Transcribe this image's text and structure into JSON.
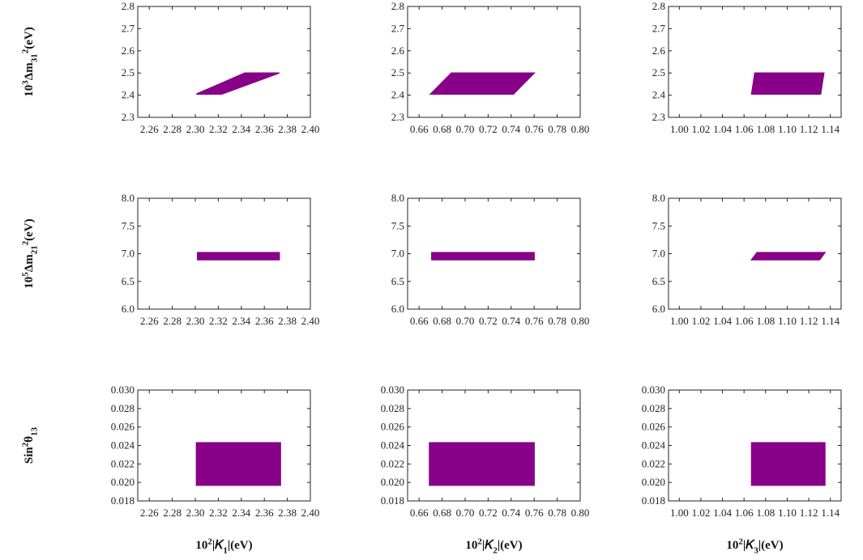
{
  "colors": {
    "region": "#880088",
    "frame": "#222222",
    "background": "#ffffff"
  },
  "x_axes": [
    {
      "label": "10<sup>2</sup>|𝐾<sub>1</sub>|(eV)",
      "ticks": [
        "2.26",
        "2.28",
        "2.30",
        "2.32",
        "2.34",
        "2.36",
        "2.38",
        "2.40"
      ],
      "range": [
        2.25,
        2.4
      ]
    },
    {
      "label": "10<sup>2</sup>|𝐾<sub>2</sub>|(eV)",
      "ticks": [
        "0.66",
        "0.68",
        "0.70",
        "0.72",
        "0.74",
        "0.76",
        "0.78",
        "0.80"
      ],
      "range": [
        0.65,
        0.8
      ]
    },
    {
      "label": "10<sup>2</sup>|𝐾<sub>3</sub>|(eV)",
      "ticks": [
        "1.00",
        "1.02",
        "1.04",
        "1.06",
        "1.08",
        "1.10",
        "1.12",
        "1.14"
      ],
      "range": [
        0.99,
        1.15
      ]
    }
  ],
  "chart_data": [
    {
      "type": "scatter",
      "row": 0,
      "col": 0,
      "ylabel": "10<sup>3</sup>Δm<sub>31</sub><sup>2</sup>(eV)",
      "yticks": [
        "2.3",
        "2.4",
        "2.5",
        "2.6",
        "2.7",
        "2.8"
      ],
      "ylim": [
        2.3,
        2.8
      ],
      "region": [
        [
          2.301,
          2.405
        ],
        [
          2.323,
          2.405
        ],
        [
          2.373,
          2.5
        ],
        [
          2.343,
          2.5
        ]
      ]
    },
    {
      "type": "scatter",
      "row": 0,
      "col": 1,
      "ylabel": "",
      "yticks": [
        "2.3",
        "2.4",
        "2.5",
        "2.6",
        "2.7",
        "2.8"
      ],
      "ylim": [
        2.3,
        2.8
      ],
      "region": [
        [
          0.67,
          2.405
        ],
        [
          0.742,
          2.405
        ],
        [
          0.76,
          2.5
        ],
        [
          0.688,
          2.5
        ]
      ]
    },
    {
      "type": "scatter",
      "row": 0,
      "col": 2,
      "ylabel": "",
      "yticks": [
        "2.3",
        "2.4",
        "2.5",
        "2.6",
        "2.7",
        "2.8"
      ],
      "ylim": [
        2.3,
        2.8
      ],
      "region": [
        [
          1.067,
          2.405
        ],
        [
          1.131,
          2.405
        ],
        [
          1.134,
          2.5
        ],
        [
          1.07,
          2.5
        ]
      ]
    },
    {
      "type": "scatter",
      "row": 1,
      "col": 0,
      "ylabel": "10<sup>5</sup>Δm<sub>21</sub><sup>2</sup>(eV)",
      "yticks": [
        "6.0",
        "6.5",
        "7.0",
        "7.5",
        "8.0"
      ],
      "ylim": [
        6.0,
        8.0
      ],
      "region": [
        [
          2.302,
          6.89
        ],
        [
          2.373,
          6.89
        ],
        [
          2.373,
          7.02
        ],
        [
          2.302,
          7.02
        ]
      ]
    },
    {
      "type": "scatter",
      "row": 1,
      "col": 1,
      "ylabel": "",
      "yticks": [
        "6.0",
        "6.5",
        "7.0",
        "7.5",
        "8.0"
      ],
      "ylim": [
        6.0,
        8.0
      ],
      "region": [
        [
          0.671,
          6.89
        ],
        [
          0.76,
          6.89
        ],
        [
          0.76,
          7.02
        ],
        [
          0.671,
          7.02
        ]
      ]
    },
    {
      "type": "scatter",
      "row": 1,
      "col": 2,
      "ylabel": "",
      "yticks": [
        "6.0",
        "6.5",
        "7.0",
        "7.5",
        "8.0"
      ],
      "ylim": [
        6.0,
        8.0
      ],
      "region": [
        [
          1.067,
          6.89
        ],
        [
          1.13,
          6.89
        ],
        [
          1.135,
          7.02
        ],
        [
          1.072,
          7.02
        ]
      ]
    },
    {
      "type": "scatter",
      "row": 2,
      "col": 0,
      "ylabel": "Sin<sup>2</sup>θ<sub>13</sub>",
      "yticks": [
        "0.018",
        "0.020",
        "0.022",
        "0.024",
        "0.026",
        "0.028",
        "0.030"
      ],
      "ylim": [
        0.018,
        0.03
      ],
      "region": [
        [
          2.301,
          0.0197
        ],
        [
          2.374,
          0.0197
        ],
        [
          2.374,
          0.0243
        ],
        [
          2.301,
          0.0243
        ]
      ]
    },
    {
      "type": "scatter",
      "row": 2,
      "col": 1,
      "ylabel": "",
      "yticks": [
        "0.018",
        "0.020",
        "0.022",
        "0.024",
        "0.026",
        "0.028",
        "0.030"
      ],
      "ylim": [
        0.018,
        0.03
      ],
      "region": [
        [
          0.669,
          0.0197
        ],
        [
          0.76,
          0.0197
        ],
        [
          0.76,
          0.0243
        ],
        [
          0.669,
          0.0243
        ]
      ]
    },
    {
      "type": "scatter",
      "row": 2,
      "col": 2,
      "ylabel": "",
      "yticks": [
        "0.018",
        "0.020",
        "0.022",
        "0.024",
        "0.026",
        "0.028",
        "0.030"
      ],
      "ylim": [
        0.018,
        0.03
      ],
      "region": [
        [
          1.067,
          0.0197
        ],
        [
          1.135,
          0.0197
        ],
        [
          1.135,
          0.0243
        ],
        [
          1.067,
          0.0243
        ]
      ]
    }
  ]
}
